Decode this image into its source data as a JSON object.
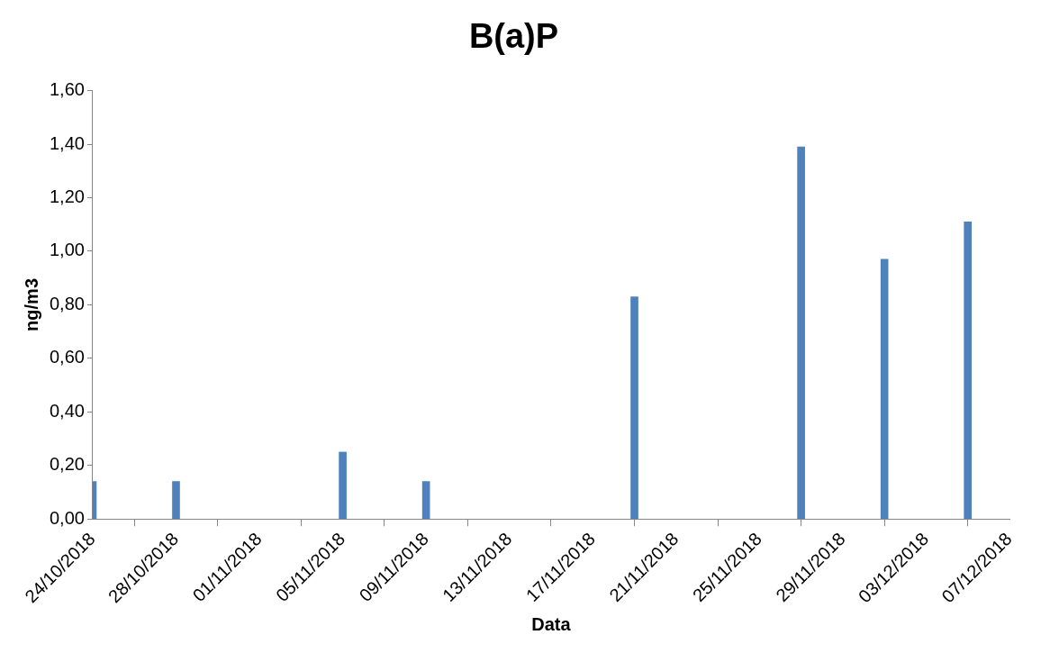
{
  "chart_data": {
    "type": "bar",
    "title": "B(a)P",
    "xlabel": "Data",
    "ylabel": "ng/m3",
    "x": [
      "2018-10-24",
      "2018-10-28",
      "2018-11-05",
      "2018-11-09",
      "2018-11-19",
      "2018-11-27",
      "2018-12-01",
      "2018-12-05"
    ],
    "values": [
      0.14,
      0.14,
      0.25,
      0.14,
      0.83,
      1.39,
      0.97,
      1.11
    ],
    "color": "#4f81bd",
    "xlim": [
      "2018-10-24",
      "2018-12-07"
    ],
    "xticks": [
      {
        "value": "2018-10-24",
        "label": "24/10/2018"
      },
      {
        "value": "2018-10-28",
        "label": "28/10/2018"
      },
      {
        "value": "2018-11-01",
        "label": "01/11/2018"
      },
      {
        "value": "2018-11-05",
        "label": "05/11/2018"
      },
      {
        "value": "2018-11-09",
        "label": "09/11/2018"
      },
      {
        "value": "2018-11-13",
        "label": "13/11/2018"
      },
      {
        "value": "2018-11-17",
        "label": "17/11/2018"
      },
      {
        "value": "2018-11-21",
        "label": "21/11/2018"
      },
      {
        "value": "2018-11-25",
        "label": "25/11/2018"
      },
      {
        "value": "2018-11-29",
        "label": "29/11/2018"
      },
      {
        "value": "2018-12-03",
        "label": "03/12/2018"
      },
      {
        "value": "2018-12-07",
        "label": "07/12/2018"
      }
    ],
    "ylim": [
      0,
      1.6
    ],
    "yticks": [
      {
        "value": 0,
        "label": "0,00"
      },
      {
        "value": 0.2,
        "label": "0,20"
      },
      {
        "value": 0.4,
        "label": "0,40"
      },
      {
        "value": 0.6,
        "label": "0,60"
      },
      {
        "value": 0.8,
        "label": "0,80"
      },
      {
        "value": 1,
        "label": "1,00"
      },
      {
        "value": 1.2,
        "label": "1,20"
      },
      {
        "value": 1.4,
        "label": "1,40"
      },
      {
        "value": 1.6,
        "label": "1,60"
      }
    ],
    "grid": false,
    "legend": false
  }
}
